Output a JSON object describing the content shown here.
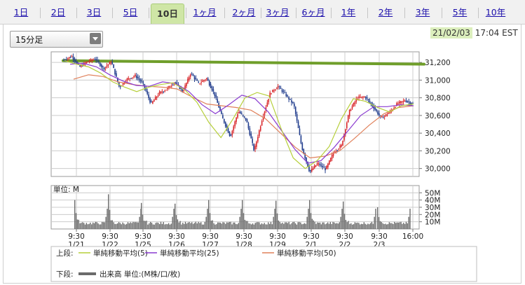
{
  "tabs": [
    {
      "label": "1日"
    },
    {
      "label": "2日"
    },
    {
      "label": "3日"
    },
    {
      "label": "5日"
    },
    {
      "label": "10日"
    },
    {
      "label": "1ヶ月"
    },
    {
      "label": "2ヶ月"
    },
    {
      "label": "3ヶ月"
    },
    {
      "label": "6ヶ月"
    },
    {
      "label": "1年"
    },
    {
      "label": "2年"
    },
    {
      "label": "3年"
    },
    {
      "label": "5年"
    },
    {
      "label": "10年"
    }
  ],
  "active_tab": "10日",
  "interval_select": {
    "value": "15分足"
  },
  "timestamp": {
    "date": "21/02/03",
    "time": "17:04 EST"
  },
  "colors": {
    "up": "#d9262a",
    "down": "#1f3b8c",
    "ma5": "#b6cf3a",
    "ma25": "#8a3bd0",
    "ma50": "#e0805a",
    "ref_line": "#6f9e2a",
    "volume": "#6b6b6b",
    "grid": "#cccccc"
  },
  "chart_data": [
    {
      "type": "candlestick",
      "title": "",
      "y_ticks": [
        30000,
        30200,
        30400,
        30600,
        30800,
        31000,
        31200
      ],
      "y_tick_labels": [
        "30,000",
        "30,200",
        "30,400",
        "30,600",
        "30,800",
        "31,000",
        "31,200"
      ],
      "ylim": [
        29910,
        31320
      ],
      "x_tick_labels": [
        {
          "time": "9:30",
          "date": "1/21"
        },
        {
          "time": "9:30",
          "date": "1/22"
        },
        {
          "time": "9:30",
          "date": "1/25"
        },
        {
          "time": "9:30",
          "date": "1/26"
        },
        {
          "time": "9:30",
          "date": "1/27"
        },
        {
          "time": "9:30",
          "date": "1/28"
        },
        {
          "time": "9:30",
          "date": "1/29"
        },
        {
          "time": "9:30",
          "date": "2/1"
        },
        {
          "time": "9:30",
          "date": "2/2"
        },
        {
          "time": "9:30",
          "date": "2/3"
        },
        {
          "time": "16:00",
          "date": ""
        }
      ],
      "reference_line": {
        "start": 31220,
        "end": 31180
      },
      "price_keys": [
        31225,
        31270,
        31150,
        31210,
        31240,
        31130,
        31210,
        30920,
        31010,
        31050,
        30960,
        30730,
        30850,
        30900,
        30980,
        30870,
        31080,
        30960,
        31020,
        30840,
        30570,
        30360,
        30650,
        30550,
        30200,
        30560,
        30850,
        30930,
        30830,
        30720,
        30240,
        29960,
        30060,
        29990,
        30180,
        30260,
        30650,
        30800,
        30810,
        30700,
        30570,
        30630,
        30730,
        30770,
        30730
      ],
      "ma_5_keys": [
        31220,
        31180,
        31150,
        31080,
        30980,
        30920,
        30870,
        30920,
        30950,
        30970,
        30890,
        30750,
        30520,
        30350,
        30560,
        30800,
        30860,
        30820,
        30450,
        30120,
        30000,
        30090,
        30250,
        30560,
        30790,
        30760,
        30690,
        30640,
        30710,
        30730
      ],
      "ma_25_keys": [
        31180,
        31190,
        31150,
        31060,
        30990,
        30940,
        30930,
        30980,
        30960,
        30870,
        30720,
        30620,
        30720,
        30830,
        30790,
        30640,
        30430,
        30220,
        30060,
        30090,
        30240,
        30420,
        30600,
        30700,
        30700,
        30720,
        30710
      ],
      "ma_50_keys": [
        31010,
        31060,
        31040,
        30980,
        30950,
        30930,
        30920,
        30900,
        30810,
        30730,
        30710,
        30690,
        30660,
        30560,
        30400,
        30240,
        30120,
        30140,
        30200,
        30340,
        30490,
        30620,
        30690,
        30710
      ]
    },
    {
      "type": "bar",
      "title": "",
      "ylabel": "単位: M",
      "y_ticks": [
        10,
        20,
        30,
        40,
        50
      ],
      "y_tick_labels": [
        "10M",
        "20M",
        "30M",
        "40M",
        "50M"
      ],
      "ylim": [
        0,
        60
      ],
      "session_peaks": [
        40,
        48,
        36,
        35,
        40,
        40,
        39,
        40,
        38,
        30
      ],
      "session_base": 6,
      "close_spike": 28
    }
  ],
  "legend": {
    "upper_label": "上段:",
    "items": [
      {
        "name": "単純移動平均(5)"
      },
      {
        "name": "単純移動平均(25)"
      },
      {
        "name": "単純移動平均(50)"
      }
    ],
    "lower_label": "下段:",
    "lower_item": "出来高 単位:(M株/口/枚)"
  }
}
